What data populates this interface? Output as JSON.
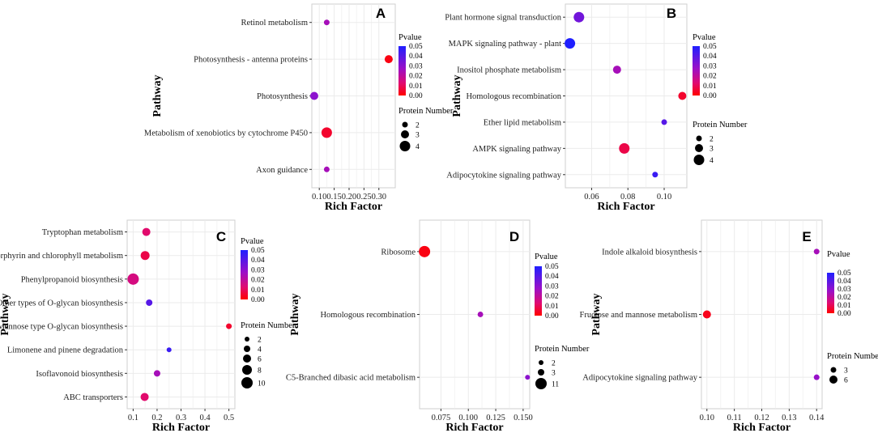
{
  "colors": {
    "pvalue_low": "#ff0000",
    "pvalue_high": "#1f1fff",
    "grid": "#ebebeb"
  },
  "chart_data": [
    {
      "type": "scatter",
      "panel": "A",
      "xlabel": "Rich Factor",
      "ylabel": "Pathway",
      "xlim": [
        0.075,
        0.355
      ],
      "xticks": [
        0.1,
        0.15,
        0.2,
        0.25,
        0.3
      ],
      "xtick_labels": [
        "0.10",
        "0.15",
        "0.20",
        "0.25",
        "0.30"
      ],
      "categories": [
        "Retinol metabolism",
        "Photosynthesis - antenna proteins",
        "Photosynthesis",
        "Metabolism of xenobiotics by cytochrome P450",
        "Axon guidance"
      ],
      "rich_factor": [
        0.125,
        0.333,
        0.083,
        0.125,
        0.125
      ],
      "pvalue": [
        0.025,
        0.002,
        0.03,
        0.005,
        0.025
      ],
      "protein_number": [
        2,
        3,
        3,
        4,
        2
      ],
      "pvalue_legend": {
        "title": "Pvalue",
        "ticks": [
          "0.05",
          "0.04",
          "0.03",
          "0.02",
          "0.01",
          "0.00"
        ]
      },
      "size_legend": {
        "title": "Protein Number",
        "values": [
          2,
          3,
          4
        ]
      }
    },
    {
      "type": "scatter",
      "panel": "B",
      "xlabel": "Rich Factor",
      "ylabel": "Pathway",
      "xlim": [
        0.0455,
        0.1125
      ],
      "xticks": [
        0.06,
        0.08,
        0.1
      ],
      "xtick_labels": [
        "0.06",
        "0.08",
        "0.10"
      ],
      "categories": [
        "Plant hormone signal transduction",
        "MAPK signaling pathway - plant",
        "Inositol phosphate metabolism",
        "Homologous recombination",
        "Ether lipid metabolism",
        "AMPK signaling pathway",
        "Adipocytokine signaling pathway"
      ],
      "rich_factor": [
        0.053,
        0.048,
        0.074,
        0.11,
        0.1,
        0.078,
        0.095
      ],
      "pvalue": [
        0.035,
        0.05,
        0.025,
        0.005,
        0.04,
        0.008,
        0.045
      ],
      "protein_number": [
        4,
        4,
        3,
        3,
        2,
        4,
        2
      ],
      "pvalue_legend": {
        "title": "Pvalue",
        "ticks": [
          "0.05",
          "0.04",
          "0.03",
          "0.02",
          "0.01",
          "0.00"
        ]
      },
      "size_legend": {
        "title": "Protein Number",
        "values": [
          2,
          3,
          4
        ]
      }
    },
    {
      "type": "scatter",
      "panel": "C",
      "xlabel": "Rich Factor",
      "ylabel": "Pathway",
      "xlim": [
        0.075,
        0.525
      ],
      "xticks": [
        0.1,
        0.2,
        0.3,
        0.4,
        0.5
      ],
      "xtick_labels": [
        "0.1",
        "0.2",
        "0.3",
        "0.4",
        "0.5"
      ],
      "categories": [
        "Tryptophan metabolism",
        "Porphyrin and chlorophyll metabolism",
        "Phenylpropanoid biosynthesis",
        "Other types of O-glycan biosynthesis",
        "Mannose type O-glycan biosynthesis",
        "Limonene and pinene degradation",
        "Isoflavonoid biosynthesis",
        "ABC transporters"
      ],
      "rich_factor": [
        0.155,
        0.15,
        0.1,
        0.167,
        0.5,
        0.25,
        0.2,
        0.148
      ],
      "pvalue": [
        0.012,
        0.008,
        0.015,
        0.04,
        0.005,
        0.045,
        0.025,
        0.012
      ],
      "protein_number": [
        6,
        7,
        10,
        4,
        3,
        2,
        4,
        6
      ],
      "pvalue_legend": {
        "title": "Pvalue",
        "ticks": [
          "0.05",
          "0.04",
          "0.03",
          "0.02",
          "0.01",
          "0.00"
        ]
      },
      "size_legend": {
        "title": "Protein Number",
        "values": [
          2,
          4,
          6,
          8,
          10
        ]
      }
    },
    {
      "type": "scatter",
      "panel": "D",
      "xlabel": "Rich Factor",
      "ylabel": "Pathway",
      "xlim": [
        0.0555,
        0.156
      ],
      "xticks": [
        0.075,
        0.1,
        0.125,
        0.15
      ],
      "xtick_labels": [
        "0.075",
        "0.100",
        "0.125",
        "0.150"
      ],
      "categories": [
        "Ribosome",
        "Homologous recombination",
        "C5-Branched dibasic acid metabolism"
      ],
      "rich_factor": [
        0.06,
        0.111,
        0.154
      ],
      "pvalue": [
        0.002,
        0.025,
        0.03
      ],
      "protein_number": [
        11,
        3,
        2
      ],
      "pvalue_legend": {
        "title": "Pvalue",
        "ticks": [
          "0.05",
          "0.04",
          "0.03",
          "0.02",
          "0.01",
          "0.00"
        ]
      },
      "size_legend": {
        "title": "Protein Number",
        "values": [
          2,
          3,
          11
        ]
      }
    },
    {
      "type": "scatter",
      "panel": "E",
      "xlabel": "Rich Factor",
      "ylabel": "Pathway",
      "xlim": [
        0.098,
        0.142
      ],
      "xticks": [
        0.1,
        0.11,
        0.12,
        0.13,
        0.14
      ],
      "xtick_labels": [
        "0.10",
        "0.11",
        "0.12",
        "0.13",
        "0.14"
      ],
      "categories": [
        "Indole alkaloid biosynthesis",
        "Fructose and mannose metabolism",
        "Adipocytokine signaling pathway"
      ],
      "rich_factor": [
        0.14,
        0.1,
        0.14
      ],
      "pvalue": [
        0.025,
        0.003,
        0.028
      ],
      "protein_number": [
        3,
        6,
        3
      ],
      "pvalue_legend": {
        "title": "Pvalue",
        "ticks": [
          "0.05",
          "0.04",
          "0.03",
          "0.02",
          "0.01",
          "0.00"
        ]
      },
      "size_legend": {
        "title": "Protein Number",
        "values": [
          3,
          6
        ]
      }
    }
  ]
}
